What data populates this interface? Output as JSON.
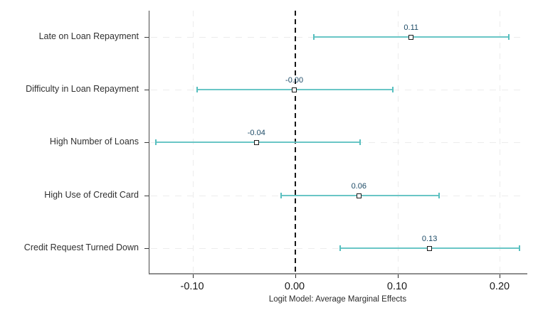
{
  "figure": {
    "x_axis_title": "Logit Model: Average Marginal Effects"
  },
  "chart_data": {
    "type": "scatter",
    "subtype": "coefficient-plot-with-ci",
    "title": "",
    "xlabel": "Logit Model: Average Marginal Effects",
    "ylabel": "",
    "categories": [
      "Late on Loan Repayment",
      "Difficulty in Loan Repayment",
      "High Number of Loans",
      "High Use of Credit Card",
      "Credit Request Turned Down"
    ],
    "series": [
      {
        "name": "Average Marginal Effect",
        "values": [
          0.113,
          -0.001,
          -0.038,
          0.062,
          0.131
        ],
        "ci_low": [
          0.018,
          -0.096,
          -0.136,
          -0.014,
          0.044
        ],
        "ci_high": [
          0.208,
          0.095,
          0.063,
          0.14,
          0.219
        ],
        "point_labels": [
          "0.11",
          "-0.00",
          "-0.04",
          "0.06",
          "0.13"
        ]
      }
    ],
    "x_ticks": [
      {
        "value": -0.1,
        "label": "-0.10"
      },
      {
        "value": 0.0,
        "label": "0.00"
      },
      {
        "value": 0.1,
        "label": "0.10"
      },
      {
        "value": 0.2,
        "label": "0.20"
      }
    ],
    "xlim": [
      -0.1424,
      0.2264
    ],
    "zero_line_at": 0,
    "grid": true,
    "legend_position": "none",
    "row_fractions": [
      0.1,
      0.3,
      0.5,
      0.705,
      0.905
    ],
    "colors": {
      "ci_line": "#6ac6c6",
      "ci_cap": "#58bfbf",
      "marker_fill": "#ffffff",
      "marker_border": "#1a1a1a",
      "point_label": "#1c4a66",
      "x_axis_line": "#8e8e8e",
      "y_axis_line": "#4b4b4b",
      "gridline": "#ececec",
      "zero_line": "#161616",
      "tick_label": "#1a1a1a",
      "category_label": "#303030"
    }
  }
}
